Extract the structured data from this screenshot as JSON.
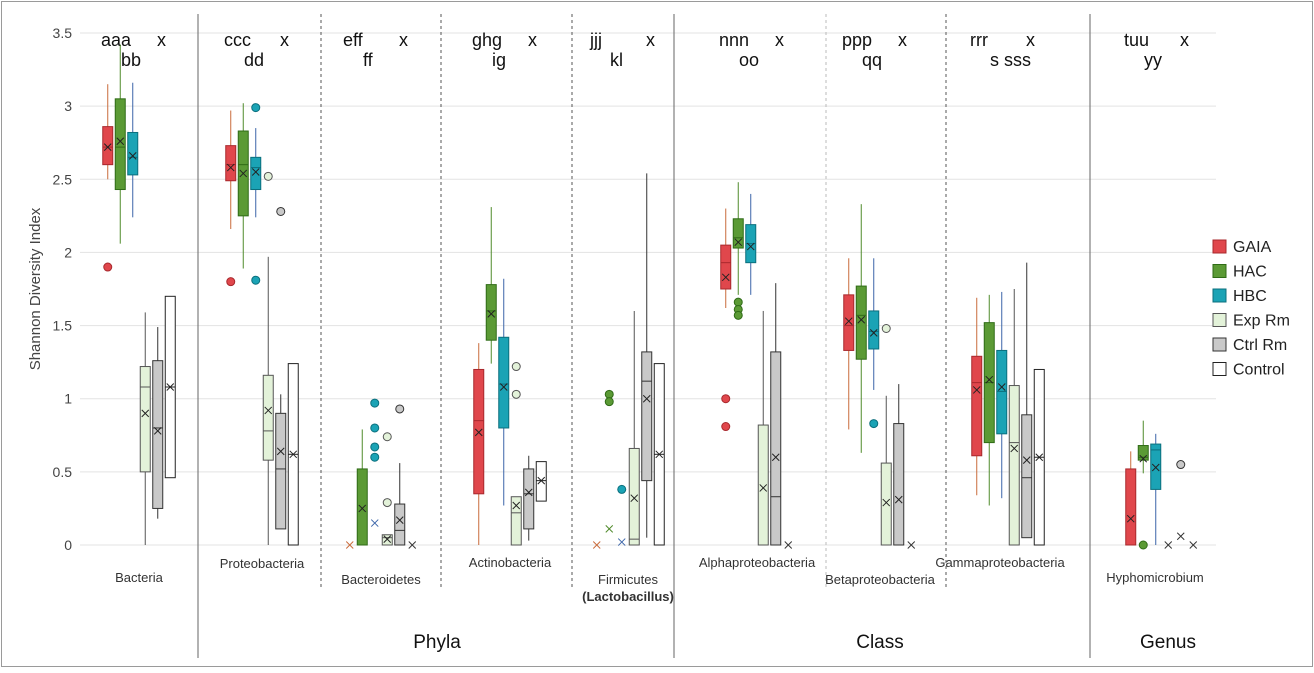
{
  "chart_data": {
    "type": "box",
    "ylabel": "Shannon Diversity Index",
    "ylim": [
      0,
      3.5
    ],
    "yticks": [
      "0",
      "0.5",
      "1",
      "1.5",
      "2",
      "2.5",
      "3",
      "3.5"
    ],
    "series": [
      {
        "name": "GAIA",
        "color": "#e0474c"
      },
      {
        "name": "HAC",
        "color": "#5b9a35"
      },
      {
        "name": "HBC",
        "color": "#1ba3b5"
      },
      {
        "name": "Exp Rm",
        "color": "#e3f2d9"
      },
      {
        "name": "Ctrl Rm",
        "color": "#c9c9c9"
      },
      {
        "name": "Control",
        "color": "#ffffff"
      }
    ],
    "groups": [
      {
        "name": "",
        "categories": [
          "Bacteria"
        ]
      },
      {
        "name": "Phyla",
        "categories": [
          "Proteobacteria",
          "Bacteroidetes",
          "Actinobacteria",
          "Firmicutes"
        ]
      },
      {
        "name": "Class",
        "categories": [
          "Alphaproteobacteria",
          "Betaproteobacteria",
          "Gammaproteobacteria"
        ]
      },
      {
        "name": "Genus",
        "categories": [
          "Hyphomicrobium"
        ]
      }
    ],
    "categories": [
      {
        "label": "Bacteria",
        "sublabel": "",
        "letters_top": "aaa",
        "letters_bottom": "bb",
        "letters_x": "x",
        "boxes": [
          {
            "series": "GAIA",
            "min": 2.5,
            "q1": 2.6,
            "median": 2.72,
            "q3": 2.86,
            "max": 3.15,
            "mean": 2.72,
            "outliers": [
              1.9
            ]
          },
          {
            "series": "HAC",
            "min": 2.06,
            "q1": 2.43,
            "median": 2.72,
            "q3": 3.05,
            "max": 3.42,
            "mean": 2.76,
            "outliers": []
          },
          {
            "series": "HBC",
            "min": 2.24,
            "q1": 2.53,
            "median": 2.65,
            "q3": 2.82,
            "max": 3.16,
            "mean": 2.66,
            "outliers": []
          },
          {
            "series": "Exp Rm",
            "min": 0,
            "q1": 0.5,
            "median": 1.08,
            "q3": 1.22,
            "max": 1.59,
            "mean": 0.9,
            "outliers": []
          },
          {
            "series": "Ctrl Rm",
            "min": 0.18,
            "q1": 0.25,
            "median": 0.8,
            "q3": 1.26,
            "max": 1.49,
            "mean": 0.78,
            "outliers": []
          },
          {
            "series": "Control",
            "min": 0.46,
            "q1": 0.46,
            "median": 1.08,
            "q3": 1.7,
            "max": 1.7,
            "mean": 1.08,
            "outliers": []
          }
        ]
      },
      {
        "label": "Proteobacteria",
        "sublabel": "",
        "letters_top": "ccc",
        "letters_bottom": "dd",
        "letters_x": "x",
        "boxes": [
          {
            "series": "GAIA",
            "min": 2.16,
            "q1": 2.49,
            "median": 2.6,
            "q3": 2.73,
            "max": 2.97,
            "mean": 2.58,
            "outliers": [
              1.8
            ]
          },
          {
            "series": "HAC",
            "min": 1.89,
            "q1": 2.25,
            "median": 2.6,
            "q3": 2.83,
            "max": 3.02,
            "mean": 2.54,
            "outliers": []
          },
          {
            "series": "HBC",
            "min": 2.24,
            "q1": 2.43,
            "median": 2.58,
            "q3": 2.65,
            "max": 2.85,
            "mean": 2.55,
            "outliers": [
              2.99,
              1.81
            ]
          },
          {
            "series": "Exp Rm",
            "min": 0,
            "q1": 0.58,
            "median": 0.78,
            "q3": 1.16,
            "max": 1.97,
            "mean": 0.92,
            "outliers": [
              2.52
            ]
          },
          {
            "series": "Ctrl Rm",
            "min": 0.11,
            "q1": 0.11,
            "median": 0.52,
            "q3": 0.9,
            "max": 1.03,
            "mean": 0.64,
            "outliers": [
              2.28
            ]
          },
          {
            "series": "Control",
            "min": 0,
            "q1": 0,
            "median": 0.62,
            "q3": 1.24,
            "max": 1.24,
            "mean": 0.62,
            "outliers": []
          }
        ]
      },
      {
        "label": "Bacteroidetes",
        "sublabel": "",
        "letters_top": "eff",
        "letters_bottom": "ff",
        "letters_x": "x",
        "boxes": [
          {
            "series": "GAIA",
            "min": 0,
            "q1": 0,
            "median": 0,
            "q3": 0,
            "max": 0,
            "mean": 0,
            "outliers": []
          },
          {
            "series": "HAC",
            "min": 0,
            "q1": 0,
            "median": 0,
            "q3": 0.52,
            "max": 0.79,
            "mean": 0.25,
            "outliers": []
          },
          {
            "series": "HBC",
            "min": 0,
            "q1": 0,
            "median": 0,
            "q3": 0,
            "max": 0,
            "mean": 0.15,
            "outliers": [
              0.97,
              0.8,
              0.67,
              0.6
            ]
          },
          {
            "series": "Exp Rm",
            "min": 0,
            "q1": 0,
            "median": 0.05,
            "q3": 0.07,
            "max": 0.07,
            "mean": 0.04,
            "outliers": [
              0.74,
              0.29
            ]
          },
          {
            "series": "Ctrl Rm",
            "min": 0,
            "q1": 0,
            "median": 0.1,
            "q3": 0.28,
            "max": 0.56,
            "mean": 0.17,
            "outliers": [
              0.93
            ]
          },
          {
            "series": "Control",
            "min": 0,
            "q1": 0,
            "median": 0,
            "q3": 0,
            "max": 0,
            "mean": 0,
            "outliers": []
          }
        ]
      },
      {
        "label": "Actinobacteria",
        "sublabel": "",
        "letters_top": "ghg",
        "letters_bottom": "ig",
        "letters_x": "x",
        "boxes": [
          {
            "series": "GAIA",
            "min": 0,
            "q1": 0.35,
            "median": 0.85,
            "q3": 1.2,
            "max": 1.38,
            "mean": 0.77,
            "outliers": []
          },
          {
            "series": "HAC",
            "min": 1.24,
            "q1": 1.4,
            "median": 1.6,
            "q3": 1.78,
            "max": 2.31,
            "mean": 1.58,
            "outliers": []
          },
          {
            "series": "HBC",
            "min": 0.27,
            "q1": 0.8,
            "median": 1.1,
            "q3": 1.42,
            "max": 1.82,
            "mean": 1.08,
            "outliers": []
          },
          {
            "series": "Exp Rm",
            "min": 0,
            "q1": 0,
            "median": 0.22,
            "q3": 0.33,
            "max": 0.33,
            "mean": 0.27,
            "outliers": [
              1.22,
              1.03
            ]
          },
          {
            "series": "Ctrl Rm",
            "min": 0.03,
            "q1": 0.11,
            "median": 0.35,
            "q3": 0.52,
            "max": 0.61,
            "mean": 0.36,
            "outliers": []
          },
          {
            "series": "Control",
            "min": 0.3,
            "q1": 0.3,
            "median": 0.44,
            "q3": 0.57,
            "max": 0.57,
            "mean": 0.44,
            "outliers": []
          }
        ]
      },
      {
        "label": "Firmicutes",
        "sublabel": "(Lactobacillus)",
        "letters_top": "jjj",
        "letters_bottom": "kl",
        "letters_x": "x",
        "boxes": [
          {
            "series": "GAIA",
            "min": 0,
            "q1": 0,
            "median": 0,
            "q3": 0,
            "max": 0,
            "mean": 0,
            "outliers": []
          },
          {
            "series": "HAC",
            "min": 0,
            "q1": 0,
            "median": 0,
            "q3": 0,
            "max": 0,
            "mean": 0.11,
            "outliers": [
              1.03,
              0.98
            ]
          },
          {
            "series": "HBC",
            "min": 0,
            "q1": 0,
            "median": 0,
            "q3": 0,
            "max": 0,
            "mean": 0.02,
            "outliers": [
              0.38
            ]
          },
          {
            "series": "Exp Rm",
            "min": 0,
            "q1": 0,
            "median": 0.04,
            "q3": 0.66,
            "max": 1.6,
            "mean": 0.32,
            "outliers": []
          },
          {
            "series": "Ctrl Rm",
            "min": 0.05,
            "q1": 0.44,
            "median": 1.12,
            "q3": 1.32,
            "max": 2.54,
            "mean": 1,
            "outliers": []
          },
          {
            "series": "Control",
            "min": 0,
            "q1": 0,
            "median": 0.62,
            "q3": 1.24,
            "max": 1.24,
            "mean": 0.62,
            "outliers": []
          }
        ]
      },
      {
        "label": "Alphaproteobacteria",
        "sublabel": "",
        "letters_top": "nnn",
        "letters_bottom": "oo",
        "letters_x": "x",
        "boxes": [
          {
            "series": "GAIA",
            "min": 1.62,
            "q1": 1.75,
            "median": 1.93,
            "q3": 2.05,
            "max": 2.3,
            "mean": 1.83,
            "outliers": [
              1,
              0.81
            ]
          },
          {
            "series": "HAC",
            "min": 1.71,
            "q1": 2.03,
            "median": 2.1,
            "q3": 2.23,
            "max": 2.48,
            "mean": 2.07,
            "outliers": [
              1.66,
              1.61,
              1.57
            ]
          },
          {
            "series": "HBC",
            "min": 1.71,
            "q1": 1.93,
            "median": 2.06,
            "q3": 2.19,
            "max": 2.4,
            "mean": 2.04,
            "outliers": []
          },
          {
            "series": "Exp Rm",
            "min": 0,
            "q1": 0,
            "median": 0,
            "q3": 0.82,
            "max": 1.6,
            "mean": 0.39,
            "outliers": []
          },
          {
            "series": "Ctrl Rm",
            "min": 0,
            "q1": 0,
            "median": 0.33,
            "q3": 1.32,
            "max": 1.79,
            "mean": 0.6,
            "outliers": []
          },
          {
            "series": "Control",
            "min": 0,
            "q1": 0,
            "median": 0,
            "q3": 0,
            "max": 0,
            "mean": 0,
            "outliers": []
          }
        ]
      },
      {
        "label": "Betaproteobacteria",
        "sublabel": "",
        "letters_top": "ppp",
        "letters_bottom": "qq",
        "letters_x": "x",
        "boxes": [
          {
            "series": "GAIA",
            "min": 0.79,
            "q1": 1.33,
            "median": 1.5,
            "q3": 1.71,
            "max": 1.96,
            "mean": 1.53,
            "outliers": []
          },
          {
            "series": "HAC",
            "min": 0.63,
            "q1": 1.27,
            "median": 1.57,
            "q3": 1.77,
            "max": 2.33,
            "mean": 1.54,
            "outliers": []
          },
          {
            "series": "HBC",
            "min": 1.06,
            "q1": 1.34,
            "median": 1.46,
            "q3": 1.6,
            "max": 1.96,
            "mean": 1.45,
            "outliers": [
              0.83
            ]
          },
          {
            "series": "Exp Rm",
            "min": 0,
            "q1": 0,
            "median": 0,
            "q3": 0.56,
            "max": 1.02,
            "mean": 0.29,
            "outliers": [
              1.48
            ]
          },
          {
            "series": "Ctrl Rm",
            "min": 0,
            "q1": 0,
            "median": 0,
            "q3": 0.83,
            "max": 1.1,
            "mean": 0.31,
            "outliers": []
          },
          {
            "series": "Control",
            "min": 0,
            "q1": 0,
            "median": 0,
            "q3": 0,
            "max": 0,
            "mean": 0,
            "outliers": []
          }
        ]
      },
      {
        "label": "Gammaproteobacteria",
        "sublabel": "",
        "letters_top": "rrr",
        "letters_bottom": "s sss",
        "letters_x": "x",
        "boxes": [
          {
            "series": "GAIA",
            "min": 0.34,
            "q1": 0.61,
            "median": 1.11,
            "q3": 1.29,
            "max": 1.69,
            "mean": 1.06,
            "outliers": []
          },
          {
            "series": "HAC",
            "min": 0.27,
            "q1": 0.7,
            "median": 1.11,
            "q3": 1.52,
            "max": 1.71,
            "mean": 1.13,
            "outliers": []
          },
          {
            "series": "HBC",
            "min": 0.32,
            "q1": 0.76,
            "median": 1.05,
            "q3": 1.33,
            "max": 1.73,
            "mean": 1.08,
            "outliers": []
          },
          {
            "series": "Exp Rm",
            "min": 0,
            "q1": 0,
            "median": 0.7,
            "q3": 1.09,
            "max": 1.75,
            "mean": 0.66,
            "outliers": []
          },
          {
            "series": "Ctrl Rm",
            "min": 0.05,
            "q1": 0.05,
            "median": 0.46,
            "q3": 0.89,
            "max": 1.93,
            "mean": 0.58,
            "outliers": []
          },
          {
            "series": "Control",
            "min": 0,
            "q1": 0,
            "median": 0.6,
            "q3": 1.2,
            "max": 1.2,
            "mean": 0.6,
            "outliers": []
          }
        ]
      },
      {
        "label": "Hyphomicrobium",
        "sublabel": "",
        "letters_top": "tuu",
        "letters_bottom": "yy",
        "letters_x": "x",
        "boxes": [
          {
            "series": "GAIA",
            "min": 0,
            "q1": 0,
            "median": 0,
            "q3": 0.52,
            "max": 0.64,
            "mean": 0.18,
            "outliers": []
          },
          {
            "series": "HAC",
            "min": 0.49,
            "q1": 0.58,
            "median": 0.6,
            "q3": 0.68,
            "max": 0.85,
            "mean": 0.59,
            "outliers": [
              0
            ]
          },
          {
            "series": "HBC",
            "min": 0,
            "q1": 0.38,
            "median": 0.65,
            "q3": 0.69,
            "max": 0.76,
            "mean": 0.53,
            "outliers": []
          },
          {
            "series": "Exp Rm",
            "min": 0,
            "q1": 0,
            "median": 0,
            "q3": 0,
            "max": 0,
            "mean": 0,
            "outliers": []
          },
          {
            "series": "Ctrl Rm",
            "min": 0,
            "q1": 0,
            "median": 0,
            "q3": 0,
            "max": 0,
            "mean": 0.06,
            "outliers": [
              0.55
            ]
          },
          {
            "series": "Control",
            "min": 0,
            "q1": 0,
            "median": 0,
            "q3": 0,
            "max": 0,
            "mean": 0,
            "outliers": []
          }
        ]
      }
    ],
    "grid": "horizontal",
    "legend_position": "right"
  }
}
